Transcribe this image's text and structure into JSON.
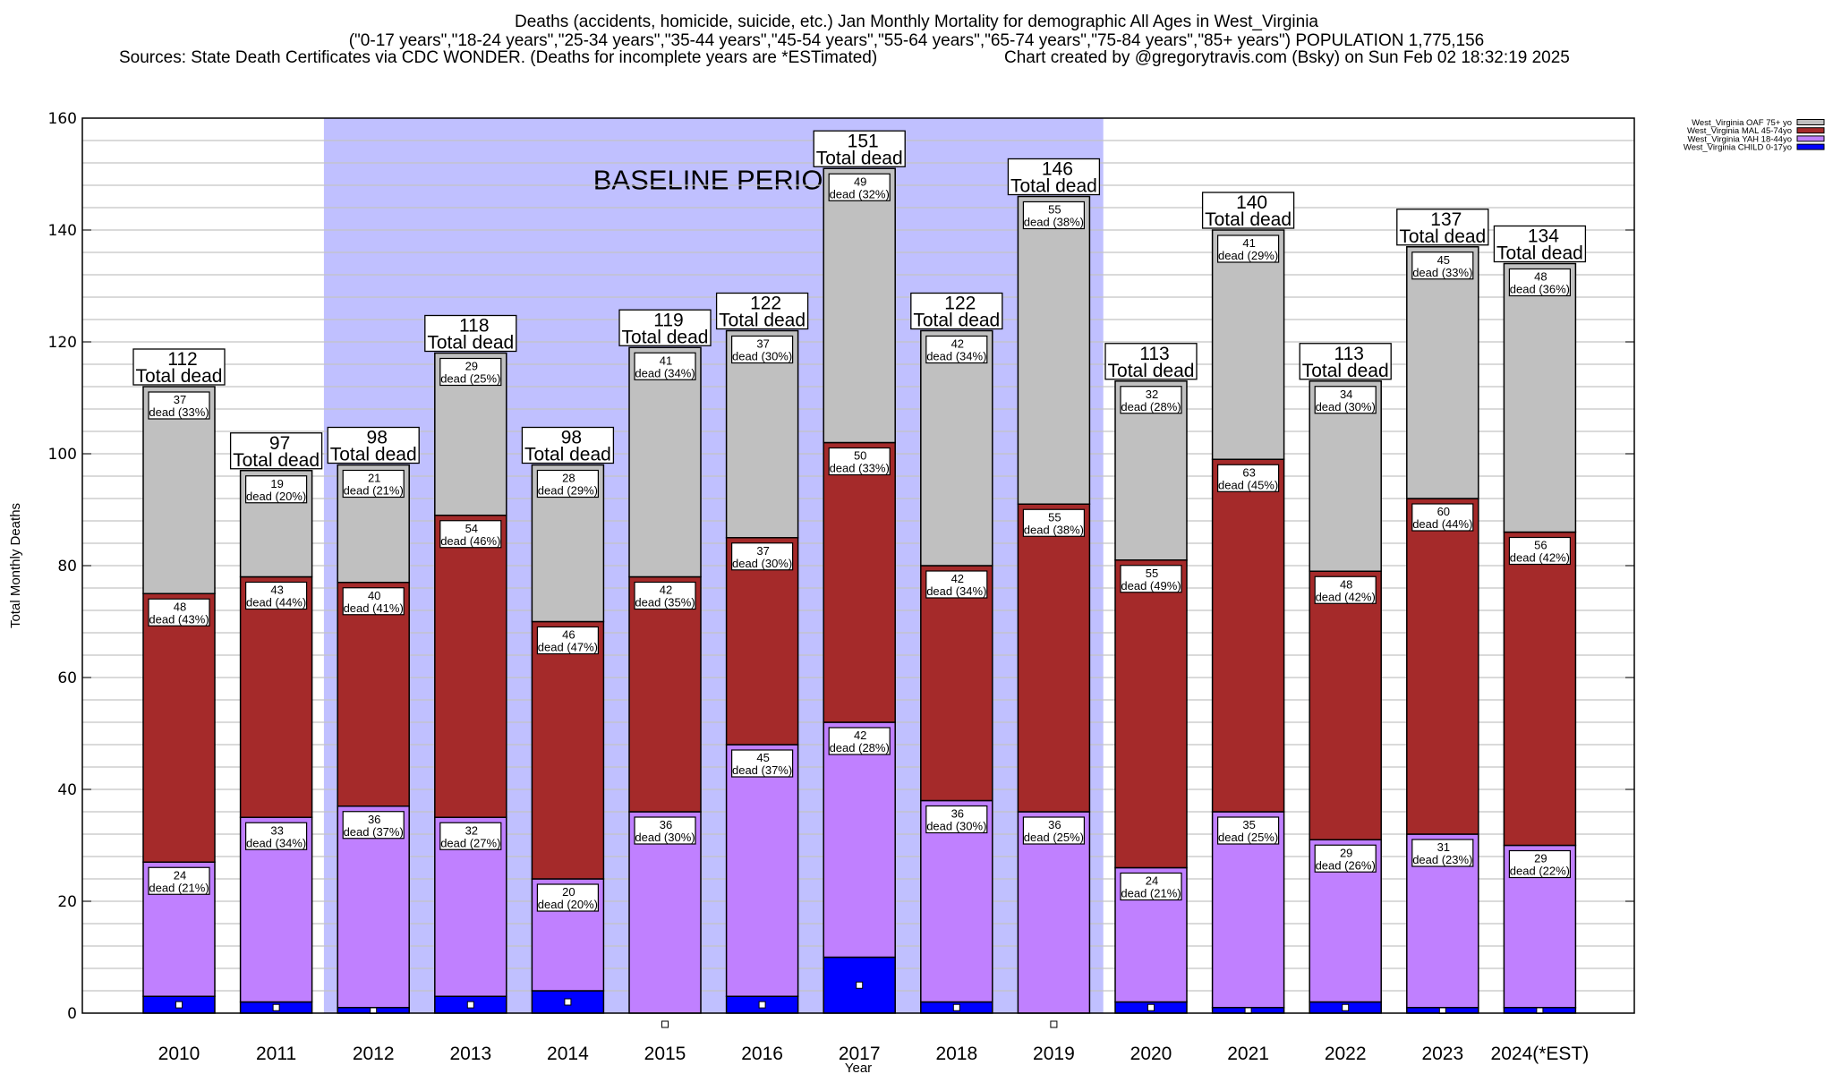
{
  "header": {
    "line1": "Deaths (accidents, homicide, suicide, etc.) Jan Monthly Mortality for demographic All Ages in West_Virginia",
    "line2": "(\"0-17 years\",\"18-24 years\",\"25-34 years\",\"35-44 years\",\"45-54 years\",\"55-64 years\",\"65-74 years\",\"75-84 years\",\"85+ years\") POPULATION 1,775,156",
    "sources": "Sources: State Death Certificates via CDC WONDER. (Deaths for incomplete years are *ESTimated)",
    "credit": "Chart created by @gregorytravis.com (Bsky) on Sun Feb 02 18:32:19 2025"
  },
  "chart_data": {
    "type": "bar",
    "stacked": true,
    "title": "Deaths (accidents, homicide, suicide, etc.) Jan Monthly Mortality for demographic All Ages in West_Virginia",
    "xlabel": "Year",
    "ylabel": "Total Monthly Deaths",
    "ylim": [
      0,
      160
    ],
    "yticks": [
      0,
      20,
      40,
      60,
      80,
      100,
      120,
      140,
      160
    ],
    "grid": true,
    "legend_position": "top-right",
    "categories": [
      "2010",
      "2011",
      "2012",
      "2013",
      "2014",
      "2015",
      "2016",
      "2017",
      "2018",
      "2019",
      "2020",
      "2021",
      "2022",
      "2023",
      "2024(*EST)"
    ],
    "totals": [
      112,
      97,
      98,
      118,
      98,
      119,
      122,
      151,
      122,
      146,
      113,
      140,
      113,
      137,
      134
    ],
    "total_label_suffix": "Total dead",
    "segment_label_word": "dead",
    "series": [
      {
        "name": "West_Virginia CHILD 0-17yo",
        "color": "#0000ff",
        "values": [
          3,
          2,
          1,
          3,
          4,
          0,
          3,
          10,
          2,
          0,
          2,
          1,
          2,
          1,
          1
        ],
        "labeled": false
      },
      {
        "name": "West_Virginia YAH 18-44yo",
        "color": "#c080ff",
        "values": [
          24,
          33,
          36,
          32,
          20,
          36,
          45,
          42,
          36,
          36,
          24,
          35,
          29,
          31,
          29
        ],
        "percents": [
          21,
          34,
          37,
          27,
          20,
          30,
          37,
          28,
          30,
          25,
          21,
          25,
          26,
          23,
          22
        ],
        "labeled": true
      },
      {
        "name": "West_Virginia MAL 45-74yo",
        "color": "#a52a2a",
        "values": [
          48,
          43,
          40,
          54,
          46,
          42,
          37,
          50,
          42,
          55,
          55,
          63,
          48,
          60,
          56
        ],
        "percents": [
          43,
          44,
          41,
          46,
          47,
          35,
          30,
          33,
          34,
          38,
          49,
          45,
          42,
          44,
          42
        ],
        "labeled": true
      },
      {
        "name": "West_Virginia OAF 75+ yo",
        "color": "#c0c0c0",
        "values": [
          37,
          19,
          21,
          29,
          28,
          41,
          37,
          49,
          42,
          55,
          32,
          41,
          34,
          45,
          48
        ],
        "percents": [
          33,
          20,
          21,
          25,
          29,
          34,
          30,
          32,
          34,
          38,
          28,
          29,
          30,
          33,
          36
        ],
        "labeled": true
      }
    ],
    "legend_order": [
      "West_Virginia OAF 75+ yo",
      "West_Virginia MAL 45-74yo",
      "West_Virginia YAH 18-44yo",
      "West_Virginia CHILD 0-17yo"
    ],
    "annotations": [
      {
        "text": "BASELINE PERIOD",
        "span": [
          "2012",
          "2019"
        ],
        "color": "#c0c0ff"
      }
    ]
  }
}
